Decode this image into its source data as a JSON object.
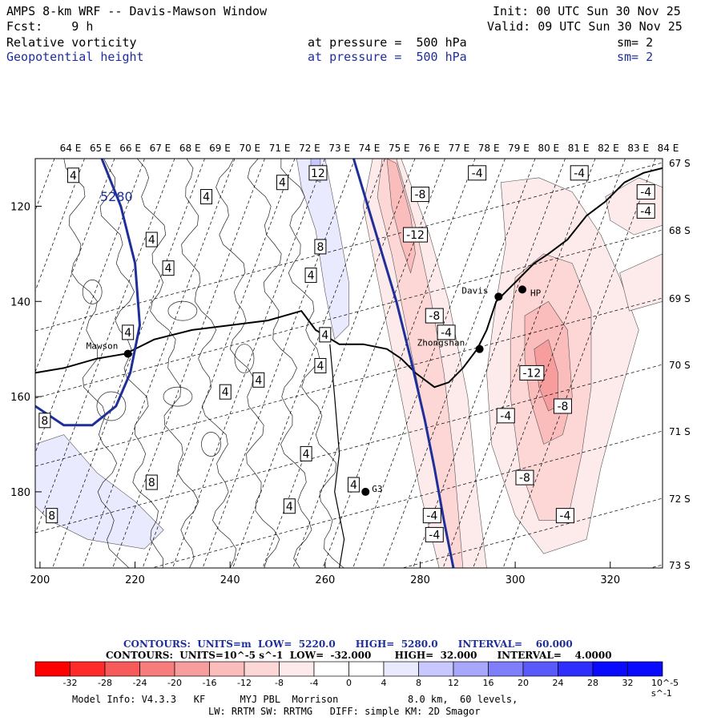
{
  "header": {
    "title": "AMPS 8-km WRF -- Davis-Mawson Window",
    "init": "Init: 00 UTC Sun 30 Nov 25",
    "forecast": "Fcst:    9 h",
    "valid": "Valid: 09 UTC Sun 30 Nov 25",
    "field1_name": "Relative vorticity",
    "field1_level": "at pressure =  500 hPa",
    "field1_sm": "sm= 2",
    "field2_name": "Geopotential height",
    "field2_level": "at pressure =  500 hPa",
    "field2_sm": "sm= 2"
  },
  "map": {
    "lon_labels": [
      "64 E",
      "65 E",
      "66 E",
      "67 E",
      "68 E",
      "69 E",
      "70 E",
      "71 E",
      "72 E",
      "73 E",
      "74 E",
      "75 E",
      "76 E",
      "77 E",
      "78 E",
      "79 E",
      "80 E",
      "81 E",
      "82 E",
      "83 E",
      "84 E"
    ],
    "lat_labels": [
      "67 S",
      "68 S",
      "69 S",
      "70 S",
      "71 S",
      "72 S",
      "73 S"
    ],
    "x_ticks": [
      "200",
      "220",
      "240",
      "260",
      "280",
      "300",
      "320"
    ],
    "y_ticks": [
      "120",
      "140",
      "160",
      "180"
    ],
    "x_range": [
      199,
      331
    ],
    "y_range": [
      110,
      196
    ],
    "stations": [
      {
        "name": "Mawson",
        "x": 218.5,
        "y": 151
      },
      {
        "name": "Davis",
        "x": 296.5,
        "y": 139
      },
      {
        "name": "HP",
        "x": 301.5,
        "y": 137.5
      },
      {
        "name": "Zhongshan",
        "x": 292.5,
        "y": 150
      },
      {
        "name": "G3",
        "x": 268.5,
        "y": 180
      }
    ],
    "height_contour_label": "5280",
    "vort_labels": [
      {
        "t": "4",
        "x": 207,
        "y": 113.5
      },
      {
        "t": "12",
        "x": 258.5,
        "y": 113
      },
      {
        "t": "-4",
        "x": 292,
        "y": 113
      },
      {
        "t": "-4",
        "x": 313.5,
        "y": 113
      },
      {
        "t": "4",
        "x": 251,
        "y": 115
      },
      {
        "t": "-4",
        "x": 327.5,
        "y": 117
      },
      {
        "t": "4",
        "x": 235,
        "y": 118
      },
      {
        "t": "-8",
        "x": 280,
        "y": 117.5
      },
      {
        "t": "-4",
        "x": 327.5,
        "y": 121
      },
      {
        "t": "4",
        "x": 223.5,
        "y": 127
      },
      {
        "t": "-12",
        "x": 279,
        "y": 126
      },
      {
        "t": "8",
        "x": 259,
        "y": 128.5
      },
      {
        "t": "4",
        "x": 227,
        "y": 133
      },
      {
        "t": "4",
        "x": 257,
        "y": 134.5
      },
      {
        "t": "-8",
        "x": 283,
        "y": 143
      },
      {
        "t": "4",
        "x": 218.5,
        "y": 146.5
      },
      {
        "t": "-4",
        "x": 285.5,
        "y": 146.5
      },
      {
        "t": "4",
        "x": 260,
        "y": 147
      },
      {
        "t": "4",
        "x": 259,
        "y": 153.5
      },
      {
        "t": "-12",
        "x": 303.5,
        "y": 155
      },
      {
        "t": "4",
        "x": 246,
        "y": 156.5
      },
      {
        "t": "4",
        "x": 239,
        "y": 159
      },
      {
        "t": "-8",
        "x": 310,
        "y": 162
      },
      {
        "t": "8",
        "x": 201,
        "y": 165
      },
      {
        "t": "-4",
        "x": 298,
        "y": 164
      },
      {
        "t": "4",
        "x": 256,
        "y": 172
      },
      {
        "t": "8",
        "x": 223.5,
        "y": 178
      },
      {
        "t": "-8",
        "x": 302,
        "y": 177
      },
      {
        "t": "4",
        "x": 266,
        "y": 178.5
      },
      {
        "t": "4",
        "x": 252.5,
        "y": 183
      },
      {
        "t": "8",
        "x": 202.5,
        "y": 185
      },
      {
        "t": "-4",
        "x": 282.5,
        "y": 185
      },
      {
        "t": "-4",
        "x": 310.5,
        "y": 185
      },
      {
        "t": "-4",
        "x": 283,
        "y": 189
      }
    ]
  },
  "legend": {
    "height_line": "CONTOURS:  UNITS=m  LOW=  5220.0      HIGH=  5280.0      INTERVAL=    60.000",
    "vort_line": "CONTOURS:  UNITS=10^-5 s^-1  LOW=  -32.000       HIGH=  32.000      INTERVAL=    4.0000",
    "colorbar_labels": [
      "-32",
      "-28",
      "-24",
      "-20",
      "-16",
      "-12",
      "-8",
      "-4",
      "0",
      "4",
      "8",
      "12",
      "16",
      "20",
      "24",
      "28",
      "32"
    ],
    "colorbar_unit": "10^-5 s^-1",
    "colors": [
      "#ff0000",
      "#ff2b2b",
      "#f75a5a",
      "#f77c7c",
      "#f79d9d",
      "#fbbcbc",
      "#fdd6d6",
      "#fdeaea",
      "#ffffff",
      "#ffffff",
      "#eaeaff",
      "#c8c8ff",
      "#a7a7fb",
      "#7f7ffb",
      "#5a5afb",
      "#2e2efd",
      "#0a0aff"
    ],
    "footer1": "Model Info: V4.3.3   KF      MYJ PBL  Morrison            8.0 km,  60 levels,",
    "footer2": "LW: RRTM SW: RRTMG   DIFF: simple KM: 2D Smagor"
  }
}
